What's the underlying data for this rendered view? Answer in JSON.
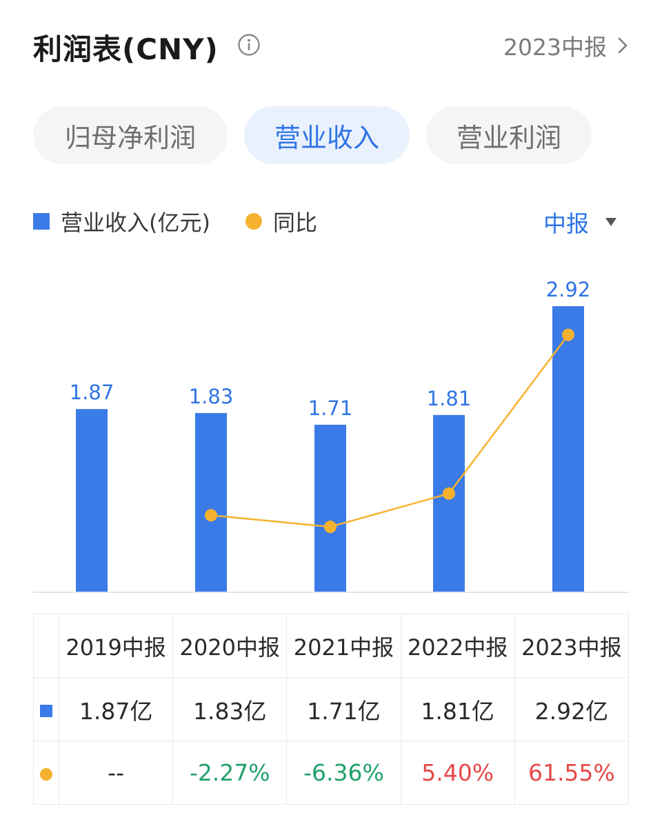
{
  "header": {
    "title": "利润表(CNY)",
    "period_link": "2023中报"
  },
  "tabs": [
    {
      "label": "归母净利润",
      "active": false
    },
    {
      "label": "营业收入",
      "active": true
    },
    {
      "label": "营业利润",
      "active": false
    }
  ],
  "legend": {
    "bar_label": "营业收入(亿元)",
    "line_label": "同比",
    "period_select": "中报"
  },
  "colors": {
    "bar": "#3b7be8",
    "line": "#f6b22e",
    "accent": "#2f74e6",
    "positive": "#e54848",
    "negative": "#22a06b"
  },
  "chart_data": {
    "type": "bar",
    "categories": [
      "2019中报",
      "2020中报",
      "2021中报",
      "2022中报",
      "2023中报"
    ],
    "series": [
      {
        "name": "营业收入(亿元)",
        "type": "bar",
        "values": [
          1.87,
          1.83,
          1.71,
          1.81,
          2.92
        ],
        "labels": [
          "1.87",
          "1.83",
          "1.71",
          "1.81",
          "2.92"
        ]
      },
      {
        "name": "同比",
        "type": "line",
        "values": [
          null,
          -2.27,
          -6.36,
          5.4,
          61.55
        ]
      }
    ],
    "ylim": [
      0,
      2.92
    ],
    "grid": false
  },
  "table": {
    "headers": [
      "",
      "2019中报",
      "2020中报",
      "2021中报",
      "2022中报",
      "2023中报"
    ],
    "revenue_row": [
      "1.87亿",
      "1.83亿",
      "1.71亿",
      "1.81亿",
      "2.92亿"
    ],
    "yoy_row": [
      "--",
      "-2.27%",
      "-6.36%",
      "5.40%",
      "61.55%"
    ],
    "yoy_colors": [
      "neutral",
      "green",
      "green",
      "red",
      "red"
    ]
  }
}
